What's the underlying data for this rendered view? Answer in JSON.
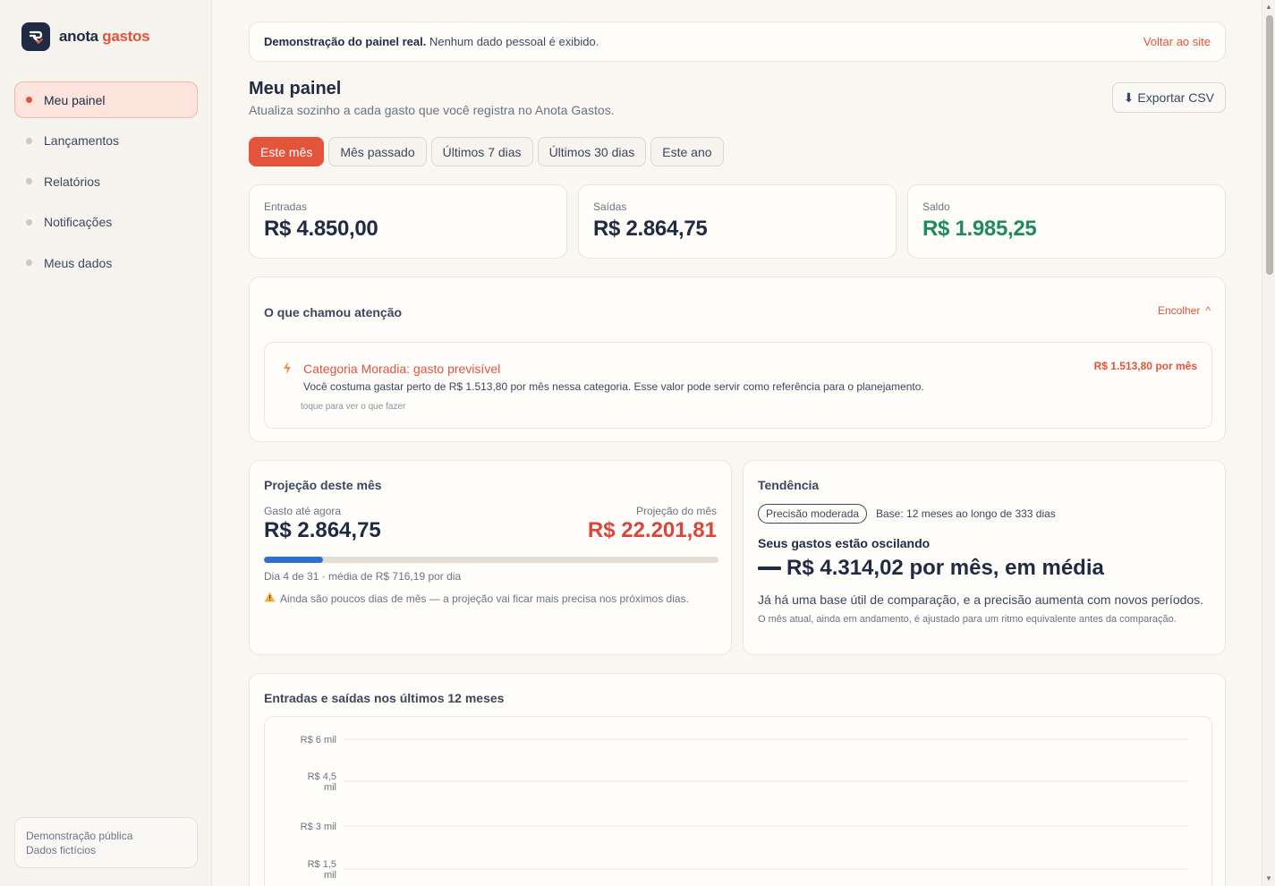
{
  "brand": {
    "word1": "anota",
    "word2": "gastos"
  },
  "sidebar": {
    "items": [
      {
        "label": "Meu painel",
        "active": true
      },
      {
        "label": "Lançamentos"
      },
      {
        "label": "Relatórios"
      },
      {
        "label": "Notificações"
      },
      {
        "label": "Meus dados"
      }
    ],
    "footer_line1": "Demonstração pública",
    "footer_line2": "Dados fictícios"
  },
  "banner": {
    "bold": "Demonstração do painel real.",
    "text": " Nenhum dado pessoal é exibido.",
    "back_label": "Voltar ao site"
  },
  "header": {
    "title": "Meu painel",
    "subtitle": "Atualiza sozinho a cada gasto que você registra no Anota Gastos.",
    "export_label": "Exportar CSV"
  },
  "periods": [
    "Este mês",
    "Mês passado",
    "Últimos 7 dias",
    "Últimos 30 dias",
    "Este ano"
  ],
  "stats": {
    "income_label": "Entradas",
    "income_value": "R$ 4.850,00",
    "expense_label": "Saídas",
    "expense_value": "R$ 2.864,75",
    "balance_label": "Saldo",
    "balance_value": "R$ 1.985,25"
  },
  "attention": {
    "title": "O que chamou atenção",
    "collapse_label": "Encolher",
    "item_title": "Categoria Moradia: gasto previsível",
    "item_amount": "R$ 1.513,80 por mês",
    "item_desc": "Você costuma gastar perto de R$ 1.513,80 por mês nessa categoria. Esse valor pode servir como referência para o planejamento.",
    "item_hint": "toque para ver o que fazer"
  },
  "projection": {
    "title": "Projeção deste mês",
    "spent_label": "Gasto até agora",
    "spent_value": "R$ 2.864,75",
    "proj_label": "Projeção do mês",
    "proj_value": "R$ 22.201,81",
    "progress": 0.13,
    "info": "Dia 4 de 31 · média de R$ 716,19 por dia",
    "warning": "Ainda são poucos dias de mês — a projeção vai ficar mais precisa nos próximos dias."
  },
  "trend": {
    "title": "Tendência",
    "pill": "Precisão moderada",
    "base": "Base: 12 meses ao longo de 333 dias",
    "status": "Seus gastos estão oscilando",
    "average": "R$ 4.314,02 por mês, em média",
    "p1": "Já há uma base útil de comparação, e a precisão aumenta com novos períodos.",
    "p2": "O mês atual, ainda em andamento, é ajustado para um ritmo equivalente antes da comparação."
  },
  "chart_data": {
    "type": "bar",
    "title": "Entradas e saídas nos últimos 12 meses",
    "y_ticks": [
      "R$ 6 mil",
      "R$ 4,5 mil",
      "R$ 3 mil",
      "R$ 1,5 mil"
    ],
    "ylim": [
      0,
      6000
    ],
    "grid": true
  },
  "colors": {
    "accent": "#e4533b",
    "navy": "#1f2a44",
    "green": "#1f8a5c",
    "blue": "#2d6fd0"
  }
}
